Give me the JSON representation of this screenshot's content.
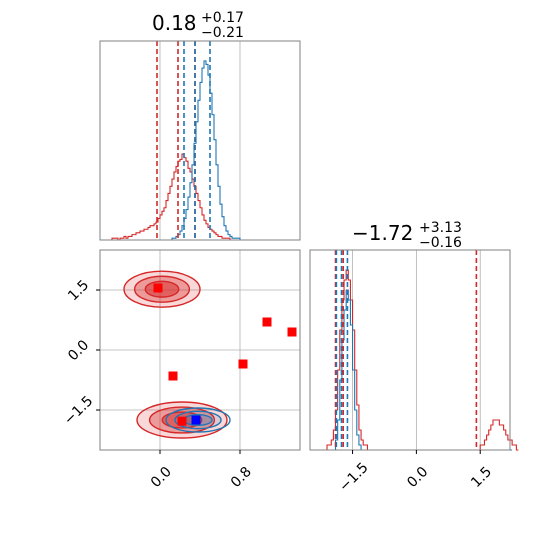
{
  "colors": {
    "red": "#d62728",
    "blue": "#1f77b4",
    "grid": "#b0b0b0",
    "frame": "#808080",
    "marker_red": "#ff0000",
    "marker_blue": "#0000ff"
  },
  "titles": {
    "param1": {
      "main": "0.18",
      "sup": "+0.17",
      "sub": "−0.21"
    },
    "param2": {
      "main": "−1.72",
      "sup": "+3.13",
      "sub": "−0.16"
    }
  },
  "chart_data": [
    {
      "type": "histogram",
      "panel": "marginal-param1",
      "xlim": [
        -0.6,
        1.4
      ],
      "grid": true,
      "quantile_lines_red": [
        -0.03,
        0.18,
        0.35
      ],
      "quantile_lines_blue": [
        0.24,
        0.35,
        0.5
      ],
      "series": [
        {
          "color": "red",
          "bins_start": -0.6,
          "bin_width": 0.02,
          "counts": [
            0,
            0,
            0,
            0,
            0,
            0,
            1,
            1,
            1,
            0,
            1,
            1,
            2,
            1,
            2,
            2,
            3,
            3,
            4,
            4,
            5,
            5,
            6,
            6,
            7,
            8,
            8,
            9,
            10,
            12,
            14,
            16,
            18,
            22,
            26,
            30,
            34,
            38,
            41,
            44,
            45,
            48,
            46,
            44,
            40,
            38,
            34,
            30,
            26,
            22,
            18,
            14,
            11,
            9,
            7,
            6,
            5,
            4,
            3,
            2,
            2,
            1,
            1,
            1,
            1,
            0,
            0,
            0,
            0,
            0,
            0,
            0,
            0,
            0,
            0,
            0,
            0,
            0,
            0,
            0,
            0,
            0,
            0,
            0,
            0,
            0,
            0,
            0,
            0,
            0,
            0,
            0,
            0,
            0,
            0,
            0,
            0,
            0,
            0,
            0
          ]
        },
        {
          "color": "blue",
          "bins_start": -0.6,
          "bin_width": 0.02,
          "counts": [
            0,
            0,
            0,
            0,
            0,
            0,
            0,
            0,
            0,
            0,
            0,
            0,
            0,
            0,
            0,
            0,
            0,
            0,
            0,
            0,
            0,
            0,
            0,
            0,
            0,
            0,
            0,
            0,
            0,
            0,
            0,
            0,
            0,
            0,
            0,
            0,
            1,
            1,
            2,
            3,
            5,
            8,
            12,
            17,
            24,
            32,
            42,
            54,
            66,
            78,
            88,
            96,
            100,
            98,
            92,
            82,
            70,
            56,
            42,
            30,
            20,
            13,
            8,
            5,
            3,
            2,
            1,
            1,
            1,
            1,
            0,
            0,
            0,
            0,
            0,
            0,
            0,
            0,
            0,
            0,
            0,
            0,
            0,
            0,
            0,
            0,
            0,
            0,
            0,
            0,
            0,
            0,
            0,
            0,
            0,
            0,
            0,
            0,
            0,
            0
          ]
        }
      ]
    },
    {
      "type": "scatter-contour",
      "panel": "joint",
      "xlim": [
        -0.6,
        1.4
      ],
      "ylim": [
        -2.5,
        2.5
      ],
      "xticks": [
        {
          "v": 0.0,
          "label": "0.0"
        },
        {
          "v": 0.8,
          "label": "0.8"
        }
      ],
      "yticks": [
        {
          "v": 1.5,
          "label": "1.5"
        },
        {
          "v": 0.0,
          "label": "0.0"
        },
        {
          "v": -1.5,
          "label": "−1.5"
        }
      ],
      "grid": true,
      "red_markers": [
        {
          "x": -0.02,
          "y": 1.55
        },
        {
          "x": 1.07,
          "y": 0.7
        },
        {
          "x": 1.32,
          "y": 0.45
        },
        {
          "x": 0.13,
          "y": -0.65
        },
        {
          "x": 0.83,
          "y": -0.35
        },
        {
          "x": 0.22,
          "y": -1.78
        }
      ],
      "blue_markers": [
        {
          "x": 0.36,
          "y": -1.75
        }
      ],
      "red_blobs": [
        {
          "cx": 0.02,
          "cy": 1.52,
          "rx": 0.38,
          "ry": 0.45
        },
        {
          "cx": 0.22,
          "cy": -1.75,
          "rx": 0.45,
          "ry": 0.45
        }
      ],
      "blue_blobs": [
        {
          "cx": 0.38,
          "cy": -1.75,
          "rx": 0.32,
          "ry": 0.3
        }
      ]
    },
    {
      "type": "histogram",
      "panel": "marginal-param2",
      "xlim": [
        -2.5,
        2.2
      ],
      "xticks": [
        {
          "v": -1.5,
          "label": "−1.5"
        },
        {
          "v": 0.0,
          "label": "0.0"
        },
        {
          "v": 1.5,
          "label": "1.5"
        }
      ],
      "grid": true,
      "quantile_lines_red": [
        -1.9,
        -1.72,
        1.41
      ],
      "quantile_lines_blue": [
        -1.88,
        -1.76,
        -1.62
      ],
      "series": [
        {
          "color": "red",
          "bins_start": -2.5,
          "bin_width": 0.05,
          "counts": [
            0,
            0,
            0,
            0,
            0,
            0,
            0,
            0,
            1,
            1,
            2,
            4,
            8,
            16,
            24,
            30,
            34,
            36,
            34,
            30,
            24,
            16,
            9,
            4,
            2,
            1,
            1,
            0,
            0,
            0,
            0,
            0,
            0,
            0,
            0,
            0,
            0,
            0,
            0,
            0,
            0,
            0,
            0,
            0,
            0,
            0,
            0,
            0,
            0,
            0,
            0,
            0,
            0,
            0,
            0,
            0,
            0,
            0,
            0,
            0,
            0,
            0,
            0,
            0,
            0,
            0,
            0,
            0,
            0,
            0,
            0,
            0,
            0,
            0,
            0,
            0,
            0,
            0,
            0,
            0,
            1,
            1,
            2,
            3,
            4,
            5,
            6,
            6,
            6,
            5,
            5,
            4,
            3,
            2,
            2,
            1,
            1,
            0
          ]
        },
        {
          "color": "blue",
          "bins_start": -2.5,
          "bin_width": 0.05,
          "counts": [
            0,
            0,
            0,
            0,
            0,
            0,
            0,
            0,
            0,
            0,
            0,
            0,
            2,
            6,
            14,
            22,
            28,
            32,
            30,
            25,
            16,
            8,
            3,
            1,
            0,
            0,
            0,
            0,
            0,
            0,
            0,
            0,
            0,
            0,
            0,
            0,
            0,
            0,
            0,
            0,
            0,
            0,
            0,
            0,
            0,
            0,
            0,
            0,
            0,
            0,
            0,
            0,
            0,
            0,
            0,
            0,
            0,
            0,
            0,
            0,
            0,
            0,
            0,
            0,
            0,
            0,
            0,
            0,
            0,
            0,
            0,
            0,
            0,
            0,
            0,
            0,
            0,
            0,
            0,
            0,
            0,
            0,
            0,
            0,
            0,
            0,
            0,
            0,
            0,
            0,
            0,
            0,
            0,
            0,
            0
          ]
        }
      ]
    }
  ]
}
